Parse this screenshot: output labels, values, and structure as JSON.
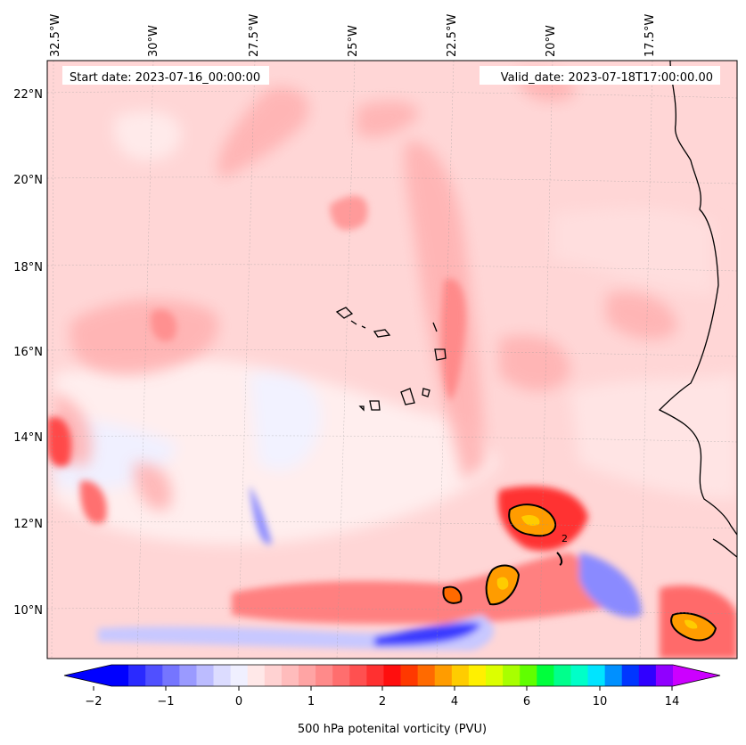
{
  "map": {
    "header_left": "Start date: 2023-07-16_00:00:00",
    "header_right": "Valid_date: 2023-07-18T17:00:00.00",
    "lon_labels": [
      "32.5°W",
      "30°W",
      "27.5°W",
      "25°W",
      "22.5°W",
      "20°W",
      "17.5°W"
    ],
    "lat_labels": [
      "22°N",
      "20°N",
      "18°N",
      "16°N",
      "14°N",
      "12°N",
      "10°N"
    ],
    "contour_label": "2"
  },
  "colorbar": {
    "title": "500 hPa potenital vorticity (PVU)",
    "tick_labels": [
      "−2",
      "−1",
      "0",
      "1",
      "2",
      "4",
      "6",
      "10",
      "14"
    ],
    "colors": [
      "#0000ff",
      "#2a2aff",
      "#5050ff",
      "#7575ff",
      "#9a9aff",
      "#bcbcff",
      "#dcdcff",
      "#f0f0ff",
      "#ffe8e8",
      "#ffd2d2",
      "#ffbcbc",
      "#ffa4a4",
      "#ff8a8a",
      "#ff6e6e",
      "#ff5050",
      "#ff3030",
      "#ff0e0e",
      "#ff3800",
      "#ff6a00",
      "#ff9c00",
      "#ffcc00",
      "#fff000",
      "#dcff00",
      "#a8ff00",
      "#60ff00",
      "#00ff3c",
      "#00ff8c",
      "#00ffc8",
      "#00e4ff",
      "#0090ff",
      "#0036ff",
      "#3000ff",
      "#9000ff"
    ],
    "extend_min_color": "#0000ff",
    "extend_max_color": "#cc00ff"
  }
}
